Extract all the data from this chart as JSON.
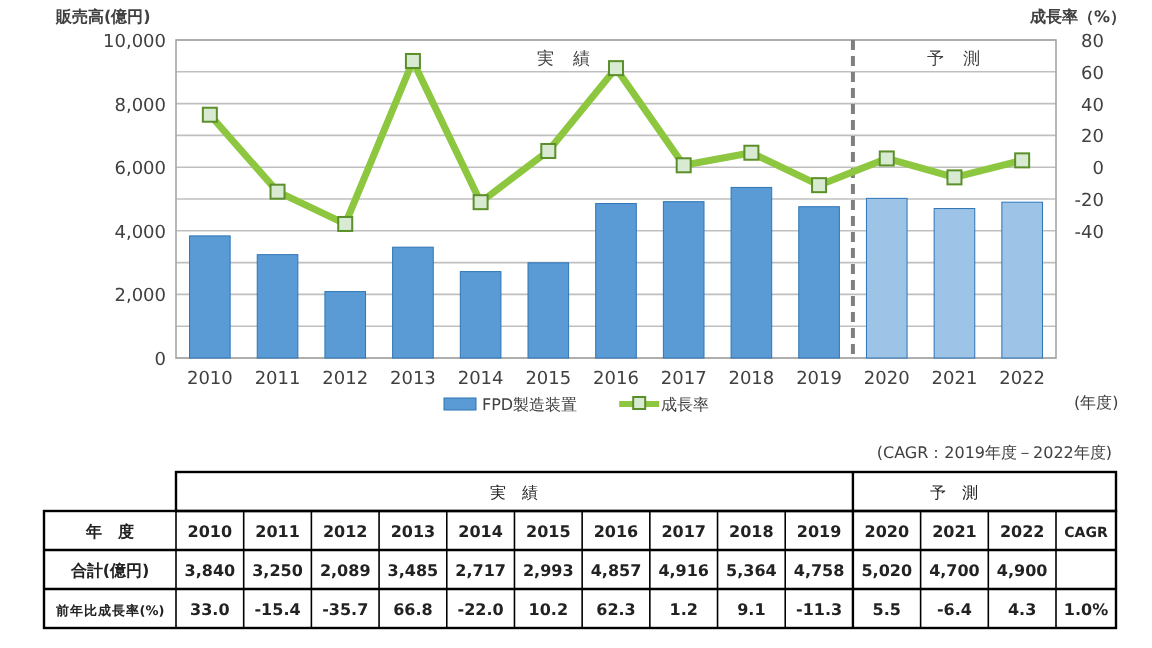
{
  "chart_data": {
    "type": "bar",
    "categories": [
      "2010",
      "2011",
      "2012",
      "2013",
      "2014",
      "2015",
      "2016",
      "2017",
      "2018",
      "2019",
      "2020",
      "2021",
      "2022"
    ],
    "ylabel": "販売高(億円)",
    "y2label": "成長率（%）",
    "xlabel": "(年度)",
    "ylim": [
      0,
      10000
    ],
    "yticks": [
      0,
      {
        "value": 2000,
        "label": "2,000"
      },
      {
        "value": 4000,
        "label": "4,000"
      },
      {
        "value": 6000,
        "label": "6,000"
      },
      {
        "value": 8000,
        "label": "8,000"
      },
      {
        "value": 10000,
        "label": "10,000"
      }
    ],
    "y2lim": [
      -120,
      80
    ],
    "y2ticks": [
      {
        "value": -120,
        "label": null
      },
      {
        "value": -100,
        "label": null
      },
      {
        "value": -80,
        "label": null
      },
      {
        "value": -60,
        "label": null
      },
      -40,
      -20,
      0,
      20,
      40,
      60,
      80
    ],
    "grid": true,
    "legend": "bottom",
    "series": [
      {
        "name": "FPD製造装置",
        "colors": [
          "#5b9bd5",
          "#5b9bd5",
          "#5b9bd5",
          "#5b9bd5",
          "#5b9bd5",
          "#5b9bd5",
          "#5b9bd5",
          "#5b9bd5",
          "#5b9bd5",
          "#5b9bd5",
          "#9dc3e6",
          "#9dc3e6",
          "#9dc3e6"
        ],
        "values": [
          3840,
          3250,
          2089,
          3485,
          2717,
          2993,
          4857,
          4916,
          5364,
          4758,
          5020,
          4700,
          4900
        ],
        "value_labels": [
          "3,840",
          "3,250",
          "2,089",
          "3,485",
          "2,717",
          "2,993",
          "4,857",
          "4,916",
          "5,364",
          "4,758",
          "5,020",
          "4,700",
          "4,900"
        ]
      },
      {
        "name": "成長率",
        "type": "line",
        "axis": "y2",
        "color": "#8dc63f",
        "marker": "square",
        "values": [
          33.0,
          -15.4,
          -35.7,
          66.8,
          -22.0,
          10.2,
          62.3,
          1.2,
          9.1,
          -11.3,
          5.5,
          -6.4,
          4.3
        ],
        "value_labels": [
          "33.0",
          "-15.4",
          "-35.7",
          "66.8",
          "-22.0",
          "10.2",
          "62.3",
          "1.2",
          "9.1",
          "-11.3",
          "5.5",
          "-6.4",
          "4.3"
        ]
      }
    ],
    "annotations": [
      "実　績",
      "予　測",
      "(CAGR：2019年度－2022年度)",
      "年　度",
      "合計(億円)",
      "前年比成長率(%)",
      "CAGR",
      "1.0%"
    ]
  }
}
